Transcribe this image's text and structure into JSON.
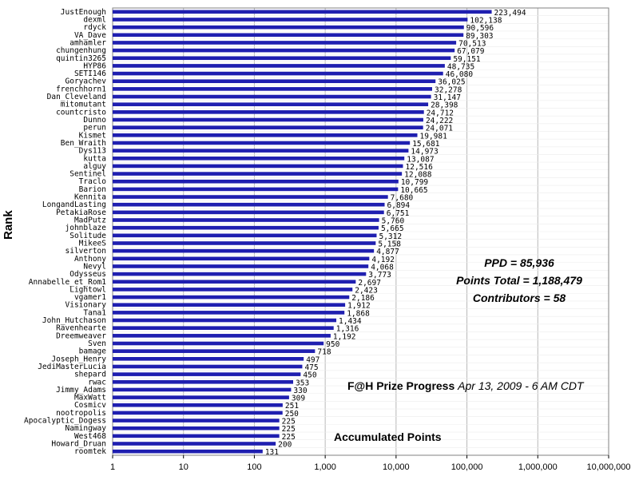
{
  "chart_data": {
    "type": "bar",
    "orientation": "horizontal",
    "scale": "log",
    "xlim": [
      1,
      10000000
    ],
    "ylabel": "Rank",
    "title": "F@H Prize Progress",
    "date": "Apr 13, 2009 - 6 AM CDT",
    "subtitle": "Accumulated Points",
    "bar_color": "#1f1fb0",
    "grid": true,
    "ticks": [
      {
        "value": 1,
        "label": "1"
      },
      {
        "value": 10,
        "label": "10"
      },
      {
        "value": 100,
        "label": "100"
      },
      {
        "value": 1000,
        "label": "1,000"
      },
      {
        "value": 10000,
        "label": "10,000"
      },
      {
        "value": 100000,
        "label": "100,000"
      },
      {
        "value": 1000000,
        "label": "1,000,000"
      },
      {
        "value": 10000000,
        "label": "10,000,000"
      }
    ],
    "categories": [
      "JustEnough",
      "dexml",
      "rdyck",
      "VA_Dave",
      "amhamler",
      "chungenhung",
      "quintin3265",
      "HYP86",
      "SETI146",
      "Goryachev",
      "frenchhorn1",
      "Dan_Cleveland",
      "mitomutant",
      "countcristo",
      "Dunno",
      "perun",
      "Kismet",
      "Ben_Wraith",
      "Dys113",
      "kutta",
      "alguy",
      "Sentinel",
      "Traclo",
      "Barion",
      "Kennita",
      "LongandLasting",
      "PetakiaRose",
      "MadPutz",
      "johnblaze",
      "Solitude",
      "MikeeS",
      "silverton",
      "Anthony",
      "Nevyl",
      "Odysseus",
      "Annabelle_et_Rom1",
      "Lightowl",
      "vgamer1",
      "Visionary",
      "Tana1",
      "John_Hutchason",
      "Ravenhearte",
      "Dreemweaver",
      "Sven",
      "bamage",
      "Joseph_Henry",
      "JediMasterLucia",
      "shepard",
      "rwac",
      "Jimmy_Adams",
      "MaxWatt",
      "Cosmicv",
      "nootropolis",
      "Apocalyptic_Dogess",
      "Namingway",
      "West468",
      "Howard_Druan",
      "roomtek"
    ],
    "values": [
      223494,
      102138,
      90596,
      89303,
      70513,
      67079,
      59151,
      48735,
      46080,
      36025,
      32278,
      31147,
      28398,
      24712,
      24222,
      24071,
      19981,
      15681,
      14973,
      13087,
      12516,
      12088,
      10799,
      10665,
      7680,
      6894,
      6751,
      5760,
      5665,
      5312,
      5158,
      4877,
      4192,
      4068,
      3773,
      2697,
      2423,
      2186,
      1912,
      1868,
      1434,
      1316,
      1192,
      950,
      718,
      497,
      475,
      450,
      353,
      330,
      309,
      251,
      250,
      225,
      225,
      225,
      200,
      131
    ],
    "value_labels": [
      "223,494",
      "102,138",
      "90,596",
      "89,303",
      "70,513",
      "67,079",
      "59,151",
      "48,735",
      "46,080",
      "36,025",
      "32,278",
      "31,147",
      "28,398",
      "24,712",
      "24,222",
      "24,071",
      "19,981",
      "15,681",
      "14,973",
      "13,087",
      "12,516",
      "12,088",
      "10,799",
      "10,665",
      "7,680",
      "6,894",
      "6,751",
      "5,760",
      "5,665",
      "5,312",
      "5,158",
      "4,877",
      "4,192",
      "4,068",
      "3,773",
      "2,697",
      "2,423",
      "2,186",
      "1,912",
      "1,868",
      "1,434",
      "1,316",
      "1,192",
      "950",
      "718",
      "497",
      "475",
      "450",
      "353",
      "330",
      "309",
      "251",
      "250",
      "225",
      "225",
      "225",
      "200",
      "131"
    ]
  },
  "stats": {
    "ppd": "PPD = 85,936",
    "points_total": "Points Total = 1,188,479",
    "contributors": "Contributors = 58"
  }
}
